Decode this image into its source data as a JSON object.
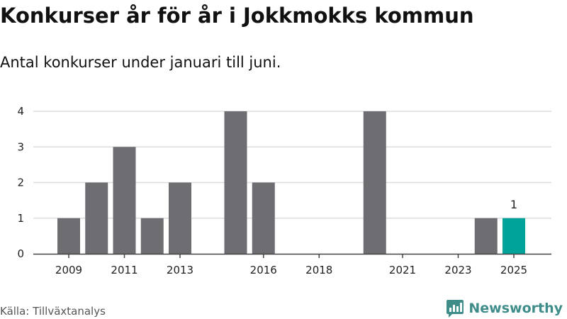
{
  "chart_data": {
    "type": "bar",
    "title": "Konkurser år för år i Jokkmokks kommun",
    "subtitle": "Antal konkurser under januari till juni.",
    "categories": [
      "2009",
      "2010",
      "2011",
      "2012",
      "2013",
      "2014",
      "2015",
      "2016",
      "2017",
      "2018",
      "2019",
      "2020",
      "2021",
      "2022",
      "2023",
      "2024",
      "2025"
    ],
    "values": [
      1,
      2,
      3,
      1,
      2,
      0,
      4,
      2,
      0,
      0,
      0,
      4,
      0,
      0,
      0,
      1,
      1
    ],
    "x_tick_labels": [
      "2009",
      "2011",
      "2013",
      "2016",
      "2018",
      "2021",
      "2023",
      "2025"
    ],
    "y_ticks": [
      "0",
      "1",
      "2",
      "3",
      "4"
    ],
    "ylim": [
      0,
      4
    ],
    "grid": true,
    "highlight_category": "2025",
    "data_labels": [
      {
        "category": "2025",
        "text": "1"
      }
    ],
    "colors": {
      "bar": "#6e6d72",
      "highlight": "#00a39a",
      "grid": "#dddddd",
      "axis": "#444444"
    }
  },
  "footer": {
    "source": "Källa: Tillväxtanalys",
    "brand": "Newsworthy",
    "brand_icon": "newsworthy-logo-icon"
  }
}
